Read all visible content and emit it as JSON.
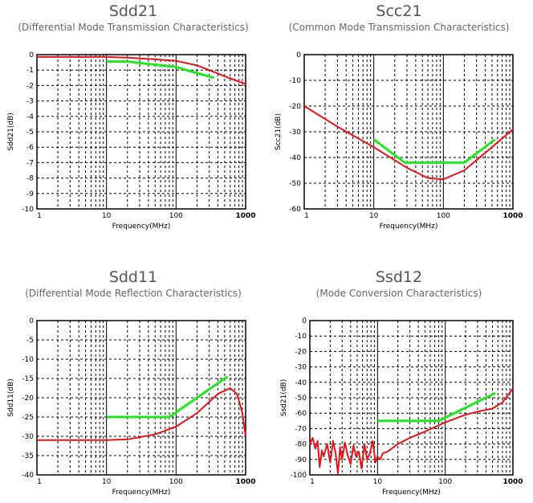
{
  "colors": {
    "measured": "#e8121a",
    "limit": "#22e622",
    "grid": "#000000"
  },
  "chart_data": [
    {
      "type": "line",
      "title": "Sdd21",
      "subtitle": "(Differential Mode Transmission Characteristics)",
      "xlabel": "Frequency(MHz)",
      "ylabel": "Sdd21(dB)",
      "xscale": "log",
      "xlim": [
        1,
        1000
      ],
      "ylim": [
        -10,
        0
      ],
      "xticks": [
        "1",
        "10",
        "100",
        "1000"
      ],
      "yticks": [
        0,
        -1,
        -2,
        -3,
        -4,
        -5,
        -6,
        -7,
        -8,
        -9,
        -10
      ],
      "grid": true,
      "series": [
        {
          "color": "#e8121a",
          "x": [
            1,
            10,
            20,
            50,
            100,
            200,
            300,
            500,
            1000
          ],
          "y": [
            -0.15,
            -0.15,
            -0.2,
            -0.3,
            -0.4,
            -0.7,
            -1.0,
            -1.4,
            -1.9
          ]
        },
        {
          "color": "#22e622",
          "x": [
            10,
            20,
            50,
            100,
            200,
            350
          ],
          "y": [
            -0.45,
            -0.45,
            -0.65,
            -0.8,
            -1.2,
            -1.5
          ]
        }
      ]
    },
    {
      "type": "line",
      "title": "Scc21",
      "subtitle": "(Common Mode Transmission Characteristics)",
      "xlabel": "Frequency(MHz)",
      "ylabel": "Scc21(dB)",
      "xscale": "log",
      "xlim": [
        1,
        1000
      ],
      "ylim": [
        -60,
        0
      ],
      "xticks": [
        "1",
        "10",
        "100",
        "1000"
      ],
      "yticks": [
        0,
        -10,
        -20,
        -30,
        -40,
        -50,
        -60
      ],
      "grid": true,
      "series": [
        {
          "color": "#e8121a",
          "x": [
            1,
            3,
            10,
            30,
            60,
            100,
            200,
            300,
            500,
            1000
          ],
          "y": [
            -20,
            -28,
            -36,
            -44,
            -48,
            -48.5,
            -45,
            -41,
            -36,
            -29
          ]
        },
        {
          "color": "#22e622",
          "x": [
            10,
            28,
            200,
            550
          ],
          "y": [
            -33,
            -42,
            -42,
            -33
          ]
        }
      ]
    },
    {
      "type": "line",
      "title": "Sdd11",
      "subtitle": "(Differential Mode Reflection Characteristics)",
      "xlabel": "Frequency(MHz)",
      "ylabel": "Sdd11(dB)",
      "xscale": "log",
      "xlim": [
        1,
        1000
      ],
      "ylim": [
        -40,
        0
      ],
      "xticks": [
        "1",
        "10",
        "100",
        "1000"
      ],
      "yticks": [
        0,
        -5,
        -10,
        -15,
        -20,
        -25,
        -30,
        -35,
        -40
      ],
      "grid": true,
      "series": [
        {
          "color": "#e8121a",
          "x": [
            1,
            10,
            20,
            50,
            100,
            200,
            400,
            600,
            750,
            900,
            1000
          ],
          "y": [
            -31,
            -31,
            -30.8,
            -29.5,
            -27.5,
            -24,
            -19,
            -17.5,
            -19,
            -24,
            -30
          ]
        },
        {
          "color": "#22e622",
          "x": [
            10,
            80,
            550
          ],
          "y": [
            -25,
            -25,
            -14.5
          ]
        }
      ]
    },
    {
      "type": "line",
      "title": "Ssd12",
      "subtitle": "(Mode Conversion Characteristics)",
      "xlabel": "Frequency(MHz)",
      "ylabel": "Ssd21(dB)",
      "xscale": "log",
      "xlim": [
        1,
        1000
      ],
      "ylim": [
        -100,
        0
      ],
      "xticks": [
        "1",
        "10",
        "100",
        "1000"
      ],
      "yticks": [
        0,
        -10,
        -20,
        -30,
        -40,
        -50,
        -60,
        -70,
        -80,
        -90,
        -100
      ],
      "grid": true,
      "series": [
        {
          "color": "#e8121a",
          "x": [
            1,
            1.1,
            1.2,
            1.3,
            1.4,
            1.5,
            1.6,
            1.8,
            2.0,
            2.2,
            2.4,
            2.6,
            2.8,
            3.0,
            3.3,
            3.6,
            4.0,
            4.4,
            4.8,
            5.3,
            5.8,
            6.4,
            7.0,
            7.7,
            8.5,
            9.3,
            10,
            11,
            12,
            14,
            20,
            30,
            50,
            100,
            200,
            300,
            500,
            700,
            1000
          ],
          "y": [
            -80,
            -76,
            -83,
            -78,
            -95,
            -84,
            -88,
            -80,
            -92,
            -78,
            -86,
            -99,
            -82,
            -90,
            -79,
            -87,
            -93,
            -81,
            -88,
            -85,
            -96,
            -80,
            -90,
            -86,
            -78,
            -92,
            -88,
            -90,
            -86,
            -85,
            -80,
            -76,
            -72,
            -66,
            -61,
            -59,
            -57,
            -53,
            -44
          ]
        },
        {
          "color": "#22e622",
          "x": [
            10,
            80,
            550
          ],
          "y": [
            -65,
            -65,
            -47
          ]
        }
      ]
    }
  ]
}
